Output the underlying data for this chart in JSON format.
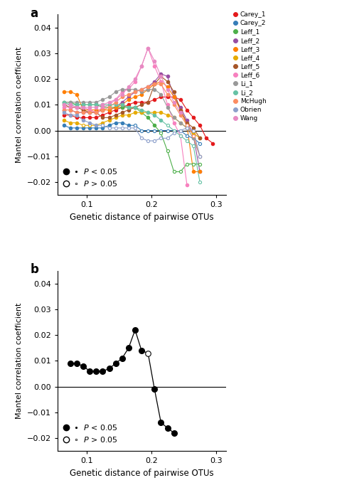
{
  "panel_a": {
    "x": [
      0.065,
      0.075,
      0.085,
      0.095,
      0.105,
      0.115,
      0.125,
      0.135,
      0.145,
      0.155,
      0.165,
      0.175,
      0.185,
      0.195,
      0.205,
      0.215,
      0.225,
      0.235,
      0.245,
      0.255,
      0.265,
      0.275,
      0.285,
      0.295,
      0.305
    ],
    "series": {
      "Carey_1": {
        "color": "#e41a1c",
        "y": [
          0.006,
          0.006,
          0.005,
          0.005,
          0.005,
          0.005,
          0.006,
          0.007,
          0.008,
          0.009,
          0.01,
          0.011,
          0.011,
          0.011,
          0.012,
          0.013,
          0.013,
          0.013,
          0.012,
          0.008,
          0.005,
          0.002,
          -0.003,
          -0.005,
          null
        ],
        "sig": [
          1,
          1,
          1,
          1,
          1,
          1,
          1,
          1,
          1,
          1,
          1,
          1,
          1,
          1,
          1,
          1,
          1,
          1,
          1,
          1,
          1,
          1,
          1,
          1,
          0
        ]
      },
      "Carey_2": {
        "color": "#377eb8",
        "y": [
          0.002,
          0.001,
          0.001,
          0.001,
          0.001,
          0.001,
          0.001,
          0.002,
          0.003,
          0.003,
          0.002,
          0.002,
          0.0,
          0.0,
          0.0,
          0.0,
          0.0,
          0.0,
          0.0,
          -0.002,
          -0.003,
          -0.005,
          null,
          null,
          null
        ],
        "sig": [
          1,
          1,
          1,
          1,
          1,
          1,
          1,
          1,
          1,
          1,
          1,
          0,
          0,
          0,
          0,
          0,
          0,
          0,
          0,
          0,
          0,
          0,
          0,
          0,
          0
        ]
      },
      "Leff_1": {
        "color": "#4daf4a",
        "y": [
          0.011,
          0.011,
          0.01,
          0.01,
          0.01,
          0.01,
          0.009,
          0.009,
          0.009,
          0.009,
          0.009,
          0.009,
          0.007,
          0.005,
          0.002,
          -0.001,
          -0.008,
          -0.016,
          -0.016,
          -0.013,
          -0.013,
          -0.013,
          null,
          null,
          null
        ],
        "sig": [
          1,
          1,
          1,
          1,
          1,
          1,
          1,
          1,
          1,
          1,
          1,
          1,
          1,
          1,
          1,
          0,
          0,
          0,
          0,
          0,
          0,
          0,
          0,
          0,
          0
        ]
      },
      "Leff_2": {
        "color": "#984ea3",
        "y": [
          0.008,
          0.008,
          0.007,
          0.007,
          0.007,
          0.007,
          0.008,
          0.008,
          0.009,
          0.011,
          0.013,
          0.015,
          0.016,
          0.017,
          0.019,
          0.022,
          0.021,
          0.013,
          0.009,
          0.004,
          -0.002,
          -0.016,
          null,
          null,
          null
        ],
        "sig": [
          1,
          1,
          1,
          1,
          1,
          1,
          1,
          1,
          1,
          1,
          1,
          1,
          1,
          1,
          1,
          1,
          1,
          1,
          1,
          1,
          1,
          1,
          0,
          0,
          0
        ]
      },
      "Leff_3": {
        "color": "#ff7f00",
        "y": [
          0.015,
          0.015,
          0.014,
          0.008,
          0.008,
          0.008,
          0.008,
          0.008,
          0.009,
          0.01,
          0.012,
          0.013,
          0.014,
          0.016,
          0.018,
          0.019,
          0.017,
          0.013,
          0.008,
          0.002,
          -0.016,
          -0.016,
          null,
          null,
          null
        ],
        "sig": [
          1,
          1,
          1,
          1,
          1,
          1,
          1,
          1,
          1,
          1,
          1,
          1,
          1,
          1,
          1,
          1,
          1,
          1,
          1,
          1,
          1,
          1,
          0,
          0,
          0
        ]
      },
      "Leff_4": {
        "color": "#e6ab02",
        "y": [
          0.004,
          0.003,
          0.003,
          0.002,
          0.002,
          0.002,
          0.003,
          0.004,
          0.005,
          0.006,
          0.006,
          0.007,
          0.007,
          0.007,
          0.007,
          0.007,
          0.006,
          0.005,
          0.003,
          0.001,
          -0.001,
          -0.003,
          null,
          null,
          null
        ],
        "sig": [
          1,
          1,
          1,
          0,
          0,
          0,
          1,
          1,
          1,
          1,
          1,
          1,
          1,
          1,
          1,
          1,
          1,
          1,
          1,
          1,
          1,
          1,
          0,
          0,
          0
        ]
      },
      "Leff_5": {
        "color": "#a65628",
        "y": [
          0.01,
          0.009,
          0.009,
          0.008,
          0.007,
          0.007,
          0.005,
          0.005,
          0.006,
          0.007,
          0.008,
          0.009,
          0.01,
          0.011,
          0.018,
          0.021,
          0.019,
          0.015,
          0.008,
          0.003,
          0.001,
          -0.003,
          null,
          null,
          null
        ],
        "sig": [
          1,
          1,
          1,
          1,
          1,
          1,
          1,
          1,
          1,
          1,
          1,
          1,
          1,
          1,
          1,
          1,
          1,
          1,
          1,
          1,
          1,
          1,
          0,
          0,
          0
        ]
      },
      "Leff_6": {
        "color": "#f781bf",
        "y": [
          0.009,
          0.009,
          0.009,
          0.009,
          0.008,
          0.007,
          0.009,
          0.01,
          0.012,
          0.015,
          0.016,
          0.019,
          0.025,
          0.032,
          0.025,
          0.019,
          0.01,
          0.003,
          -0.002,
          -0.021,
          null,
          null,
          null,
          null,
          null
        ],
        "sig": [
          1,
          1,
          1,
          1,
          1,
          1,
          1,
          1,
          1,
          1,
          1,
          1,
          1,
          1,
          1,
          1,
          1,
          1,
          1,
          1,
          0,
          0,
          0,
          0,
          0
        ]
      },
      "Li_1": {
        "color": "#999999",
        "y": [
          0.011,
          0.011,
          0.011,
          0.011,
          0.011,
          0.011,
          0.012,
          0.013,
          0.015,
          0.016,
          0.016,
          0.016,
          0.015,
          0.016,
          0.016,
          0.014,
          0.009,
          0.005,
          0.003,
          0.001,
          -0.003,
          -0.01,
          null,
          null,
          null
        ],
        "sig": [
          1,
          1,
          1,
          1,
          1,
          1,
          1,
          1,
          1,
          1,
          1,
          1,
          1,
          1,
          1,
          1,
          1,
          1,
          1,
          1,
          1,
          1,
          0,
          0,
          0
        ]
      },
      "Li_2": {
        "color": "#66c2a5",
        "y": [
          0.011,
          0.01,
          0.01,
          0.01,
          0.01,
          0.01,
          0.01,
          0.01,
          0.01,
          0.01,
          0.009,
          0.009,
          0.008,
          0.007,
          0.006,
          0.004,
          0.002,
          0.0,
          -0.002,
          -0.004,
          -0.006,
          -0.02,
          null,
          null,
          null
        ],
        "sig": [
          1,
          1,
          1,
          1,
          1,
          1,
          1,
          1,
          1,
          1,
          1,
          1,
          1,
          1,
          1,
          1,
          0,
          0,
          0,
          0,
          0,
          0,
          0,
          0,
          0
        ]
      },
      "McHugh": {
        "color": "#fc8d62",
        "y": [
          0.008,
          0.008,
          0.007,
          0.007,
          0.007,
          0.007,
          0.008,
          0.009,
          0.011,
          0.013,
          0.014,
          0.015,
          0.016,
          0.017,
          0.018,
          0.018,
          0.014,
          0.01,
          0.006,
          0.002,
          -0.002,
          -0.01,
          null,
          null,
          null
        ],
        "sig": [
          1,
          1,
          1,
          1,
          1,
          1,
          1,
          1,
          1,
          1,
          1,
          1,
          1,
          1,
          1,
          1,
          1,
          1,
          1,
          0,
          0,
          0,
          0,
          0,
          0
        ]
      },
      "Obrien": {
        "color": "#8da0cb",
        "y": [
          0.007,
          0.006,
          0.006,
          0.004,
          0.003,
          0.002,
          0.002,
          0.001,
          0.001,
          0.001,
          0.001,
          0.001,
          -0.003,
          -0.004,
          -0.004,
          -0.003,
          -0.003,
          -0.001,
          0.0,
          0.001,
          0.0,
          -0.01,
          null,
          null,
          null
        ],
        "sig": [
          1,
          1,
          1,
          1,
          1,
          1,
          0,
          0,
          0,
          0,
          0,
          0,
          0,
          0,
          0,
          0,
          0,
          0,
          0,
          0,
          0,
          0,
          0,
          0,
          0
        ]
      },
      "Wang": {
        "color": "#e78ac3",
        "y": [
          0.01,
          0.01,
          0.009,
          0.009,
          0.009,
          0.009,
          0.01,
          0.011,
          0.012,
          0.014,
          0.017,
          0.02,
          0.025,
          0.032,
          0.027,
          0.021,
          0.016,
          0.011,
          0.007,
          null,
          null,
          null,
          null,
          null,
          null
        ],
        "sig": [
          1,
          1,
          1,
          1,
          1,
          1,
          1,
          1,
          1,
          1,
          1,
          1,
          1,
          1,
          1,
          1,
          1,
          1,
          1,
          0,
          0,
          0,
          0,
          0,
          0
        ]
      }
    }
  },
  "panel_b": {
    "x": [
      0.075,
      0.085,
      0.095,
      0.105,
      0.115,
      0.125,
      0.135,
      0.145,
      0.155,
      0.165,
      0.175,
      0.185,
      0.195,
      0.205,
      0.215,
      0.225,
      0.235,
      0.245,
      0.255,
      0.265,
      0.275,
      0.285,
      0.295,
      0.305
    ],
    "y": [
      0.009,
      0.009,
      0.008,
      0.006,
      0.006,
      0.006,
      0.007,
      0.009,
      0.011,
      0.015,
      0.022,
      0.014,
      0.013,
      -0.001,
      -0.014,
      -0.016,
      -0.018,
      null,
      null,
      null,
      null,
      null,
      null,
      null
    ],
    "sig": [
      1,
      1,
      1,
      1,
      1,
      1,
      1,
      1,
      1,
      1,
      1,
      1,
      0,
      1,
      1,
      1,
      1,
      0,
      0,
      0,
      0,
      0,
      0,
      0
    ]
  },
  "ylim": [
    -0.025,
    0.045
  ],
  "xlim": [
    0.055,
    0.315
  ],
  "yticks": [
    -0.02,
    -0.01,
    0.0,
    0.01,
    0.02,
    0.03,
    0.04
  ],
  "xticks": [
    0.1,
    0.2,
    0.3
  ],
  "ylabel": "Mantel correlation coefficient",
  "xlabel": "Genetic distance of pairwise OTUs",
  "legend_order": [
    "Carey_1",
    "Carey_2",
    "Leff_1",
    "Leff_2",
    "Leff_3",
    "Leff_4",
    "Leff_5",
    "Leff_6",
    "Li_1",
    "Li_2",
    "McHugh",
    "Obrien",
    "Wang"
  ]
}
